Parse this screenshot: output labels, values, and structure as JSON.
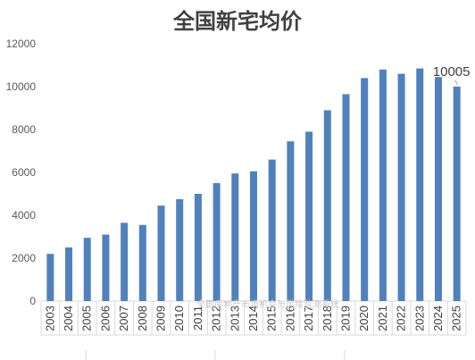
{
  "chart_data": {
    "type": "bar",
    "title": "全国新宅均价",
    "categories": [
      "2003",
      "2004",
      "2005",
      "2006",
      "2007",
      "2008",
      "2009",
      "2010",
      "2011",
      "2012",
      "2013",
      "2014",
      "2015",
      "2016",
      "2017",
      "2018",
      "2019",
      "2020",
      "2021",
      "2022",
      "2023",
      "2024",
      "2025"
    ],
    "values": [
      2200,
      2500,
      2950,
      3100,
      3650,
      3550,
      4450,
      4750,
      5000,
      5500,
      5950,
      6050,
      6600,
      7450,
      7900,
      8900,
      9650,
      10400,
      10800,
      10600,
      10850,
      10450,
      10005
    ],
    "yticks": [
      0,
      2000,
      4000,
      6000,
      8000,
      10000,
      12000
    ],
    "ylim": [
      0,
      12000
    ],
    "xlabel": "",
    "ylabel": "",
    "grid": false,
    "legend": "none",
    "bar_color": "#4f81bd",
    "data_labels": [
      {
        "category": "2025",
        "text": "10005"
      }
    ],
    "watermark": "全国房地产市场机会与风险监测系统"
  }
}
